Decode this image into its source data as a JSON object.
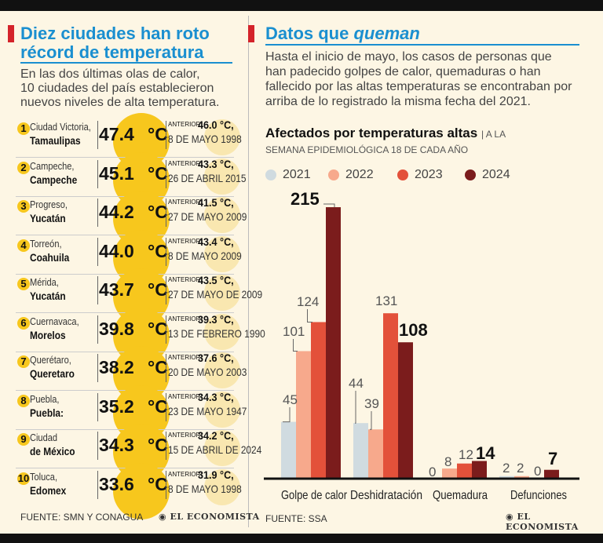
{
  "left": {
    "heading_line1": "Diez ciudades han roto",
    "heading_line2": "récord de temperatura",
    "intro_line1": "En las dos últimas olas de calor,",
    "intro_line2": "10 ciudades del país establecieron",
    "intro_line3": "nuevos niveles de alta temperatura.",
    "unit": "°C",
    "prev_label": "ANTERIOR:",
    "cities": [
      {
        "rank": "1",
        "city": "Ciudad Victoria,",
        "state": "Tamaulipas",
        "temp": "47.4",
        "prev": "46.0 °C,",
        "date": "8 DE MAYO 1998"
      },
      {
        "rank": "2",
        "city": "Campeche,",
        "state": "Campeche",
        "temp": "45.1",
        "prev": "43.3 °C,",
        "date": "26 DE ABRIL 2015"
      },
      {
        "rank": "3",
        "city": "Progreso,",
        "state": "Yucatán",
        "temp": "44.2",
        "prev": "41.5 °C,",
        "date": "27 DE MAYO 2009"
      },
      {
        "rank": "4",
        "city": "Torreón,",
        "state": "Coahuila",
        "temp": "44.0",
        "prev": "43.4 °C,",
        "date": "8 DE MAYO 2009"
      },
      {
        "rank": "5",
        "city": "Mérida,",
        "state": "Yucatán",
        "temp": "43.7",
        "prev": "43.5 °C,",
        "date": "27 DE MAYO DE 2009"
      },
      {
        "rank": "6",
        "city": "Cuernavaca,",
        "state": "Morelos",
        "temp": "39.8",
        "prev": "39.3 °C,",
        "date": "13 DE FEBRERO 1990"
      },
      {
        "rank": "7",
        "city": "Querétaro,",
        "state": "Queretaro",
        "temp": "38.2",
        "prev": "37.6 °C,",
        "date": "20 DE MAYO 2003"
      },
      {
        "rank": "8",
        "city": "Puebla,",
        "state": "Puebla:",
        "temp": "35.2",
        "prev": "34.3 °C,",
        "date": "23 DE MAYO 1947"
      },
      {
        "rank": "9",
        "city": "Ciudad",
        "state": "de México",
        "temp": "34.3",
        "prev": "34.2 °C,",
        "date": "15 DE ABRIL DE 2024"
      },
      {
        "rank": "10",
        "city": "Toluca,",
        "state": "Edomex",
        "temp": "33.6",
        "prev": "31.9 °C,",
        "date": "8 DE MAYO 1998"
      }
    ],
    "source": "FUENTE: SMN Y CONAGUA",
    "logo": "EL ECONOMISTA"
  },
  "right": {
    "heading_plain": "Datos que",
    "heading_italic": "queman",
    "intro_line1": "Hasta el inicio de mayo, los casos de personas que",
    "intro_line2": "han padecido golpes de calor, quemaduras o han",
    "intro_line3": "fallecido por las altas temperaturas se encontraban por",
    "intro_line4": "arriba de lo registrado la misma fecha del 2021.",
    "source": "FUENTE: SSA",
    "logo": "EL ECONOMISTA"
  },
  "chart_data": {
    "type": "bar",
    "title": "Afectados por temperaturas altas",
    "subtitle_part1": "| A LA",
    "subtitle_part2": "SEMANA EPIDEMIOLÓGICA 18 DE CADA AÑO",
    "categories": [
      "Golpe de calor",
      "Deshidratación",
      "Quemadura",
      "Defunciones"
    ],
    "series": [
      {
        "name": "2021",
        "color": "#d0dbe0",
        "values": [
          45,
          44,
          0,
          2
        ]
      },
      {
        "name": "2022",
        "color": "#f7a98c",
        "values": [
          101,
          39,
          8,
          2
        ]
      },
      {
        "name": "2023",
        "color": "#e3513a",
        "values": [
          124,
          131,
          12,
          0
        ]
      },
      {
        "name": "2024",
        "color": "#7b1c1c",
        "values": [
          215,
          108,
          14,
          7
        ]
      }
    ],
    "ylim": [
      0,
      220
    ],
    "xlabel": "",
    "ylabel": "",
    "grid": false,
    "legend": "top"
  }
}
